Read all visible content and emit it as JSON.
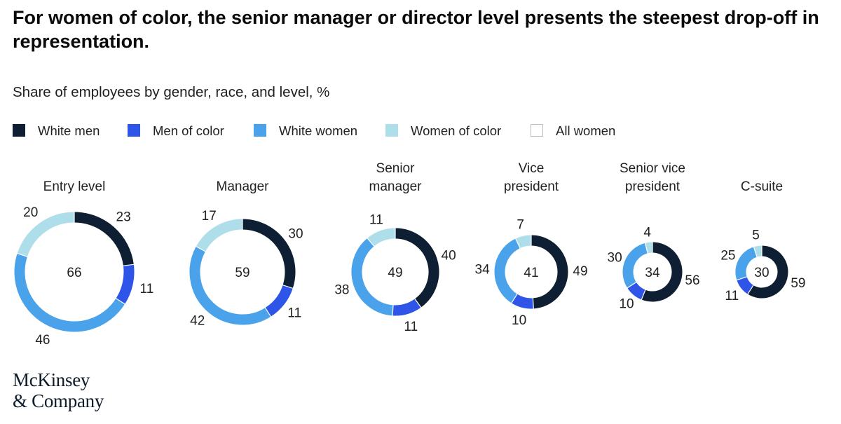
{
  "title": "For women of color, the senior manager or director level presents the steepest drop-off in representation.",
  "subtitle": "Share of employees by gender, race, and level, %",
  "colors": {
    "white_men": "#0f1f33",
    "men_of_color": "#2e55e8",
    "white_women": "#4aa3ea",
    "women_of_color": "#afdeeb",
    "all_women_border": "#bdbdbd"
  },
  "legend": [
    {
      "label": "White men",
      "color": "#0f1f33"
    },
    {
      "label": "Men of color",
      "color": "#2e55e8"
    },
    {
      "label": "White women",
      "color": "#4aa3ea"
    },
    {
      "label": "Women of color",
      "color": "#afdeeb"
    },
    {
      "label": "All women",
      "color": "#ffffff"
    }
  ],
  "chart_data": {
    "type": "donut",
    "series_order": [
      "White men",
      "Men of color",
      "White women",
      "Women of color"
    ],
    "center_label_series": "All women",
    "levels": [
      {
        "label": [
          "Entry level"
        ],
        "white_men": 23,
        "men_of_color": 11,
        "white_women": 46,
        "women_of_color": 20,
        "all_women": 66
      },
      {
        "label": [
          "Manager"
        ],
        "white_men": 30,
        "men_of_color": 11,
        "white_women": 42,
        "women_of_color": 17,
        "all_women": 59
      },
      {
        "label": [
          "Senior",
          "manager"
        ],
        "white_men": 40,
        "men_of_color": 11,
        "white_women": 38,
        "women_of_color": 11,
        "all_women": 49
      },
      {
        "label": [
          "Vice",
          "president"
        ],
        "white_men": 49,
        "men_of_color": 10,
        "white_women": 34,
        "women_of_color": 7,
        "all_women": 41
      },
      {
        "label": [
          "Senior vice",
          "president"
        ],
        "white_men": 56,
        "men_of_color": 10,
        "white_women": 30,
        "women_of_color": 4,
        "all_women": 34
      },
      {
        "label": [
          "C-suite"
        ],
        "white_men": 59,
        "men_of_color": 11,
        "white_women": 25,
        "women_of_color": 5,
        "all_women": 30
      }
    ]
  },
  "logo": {
    "line1": "McKinsey",
    "line2": "& Company"
  }
}
